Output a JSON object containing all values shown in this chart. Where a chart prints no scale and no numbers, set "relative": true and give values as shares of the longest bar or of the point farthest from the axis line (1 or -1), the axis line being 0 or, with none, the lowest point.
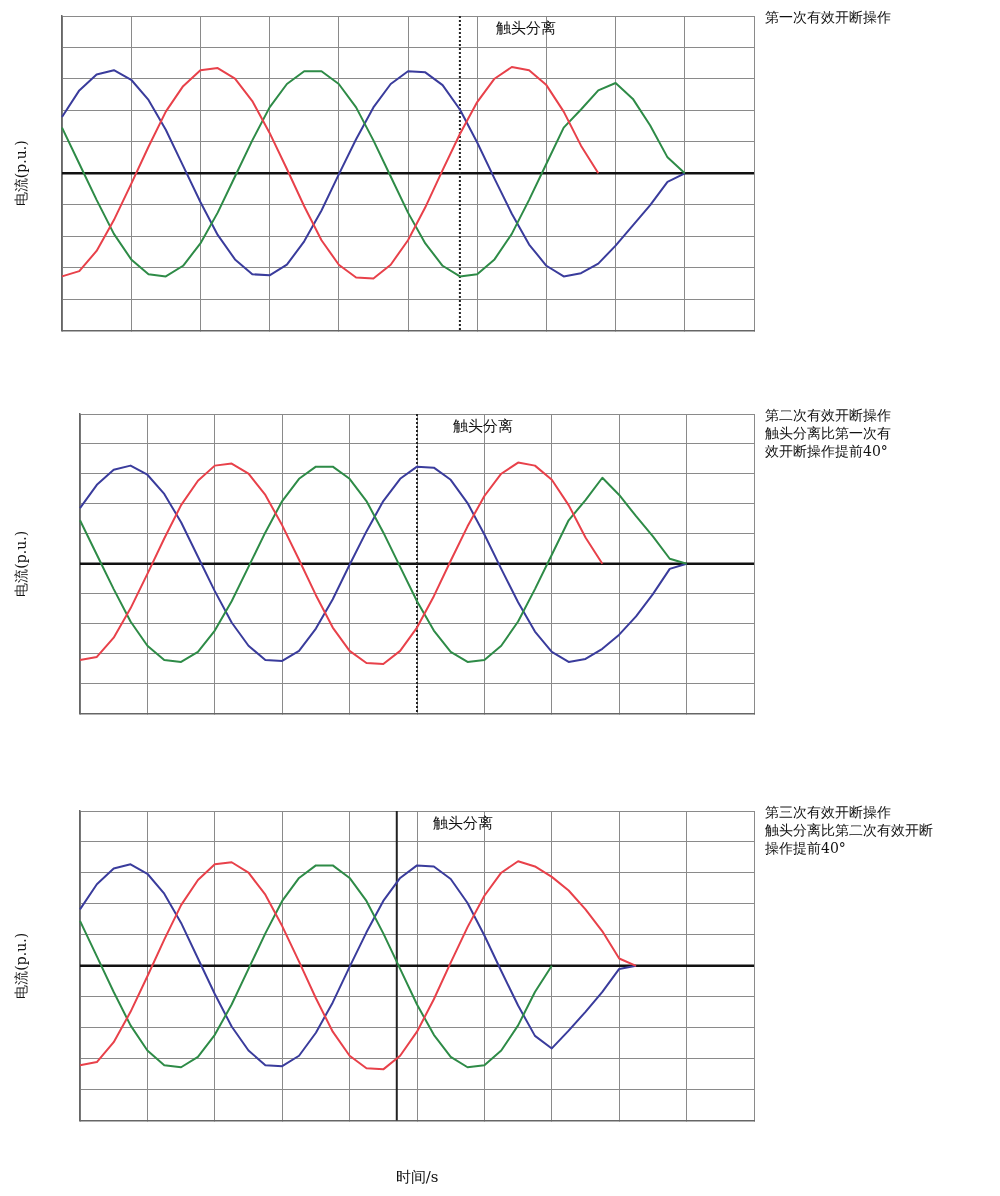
{
  "chart_data": [
    {
      "type": "line",
      "relative": true,
      "ylabel": "电流(p.u.)",
      "categories": [
        null,
        null,
        null,
        null,
        null,
        null,
        null,
        null,
        null,
        null,
        null,
        null,
        null,
        null,
        null,
        null,
        null,
        null,
        null,
        null,
        null,
        null,
        null,
        null,
        null,
        null,
        null,
        null,
        null,
        null,
        null,
        null,
        null,
        null,
        null,
        null,
        null,
        null,
        null,
        null,
        null
      ],
      "grid": true,
      "legend": false,
      "marker": "none",
      "line_style": "solid",
      "annotations": [
        "触头分离",
        "第一次有效开断操作"
      ],
      "series": [
        {
          "color": "#e8414a",
          "values": [
            -0.97,
            -0.92,
            -0.73,
            -0.44,
            -0.1,
            0.25,
            0.58,
            0.82,
            0.97,
            0.99,
            0.89,
            0.68,
            0.38,
            0.04,
            -0.31,
            -0.63,
            -0.86,
            -0.98,
            -0.99,
            -0.86,
            -0.63,
            -0.32,
            0.03,
            0.37,
            0.67,
            0.89,
            1,
            0.97,
            0.83,
            0.58,
            0.26,
            0,
            null,
            null,
            null,
            null,
            null,
            null,
            null,
            null,
            null
          ]
        },
        {
          "color": "#2e8b47",
          "values": [
            0.43,
            0.09,
            -0.25,
            -0.57,
            -0.81,
            -0.95,
            -0.97,
            -0.87,
            -0.66,
            -0.37,
            -0.03,
            0.31,
            0.62,
            0.84,
            0.96,
            0.96,
            0.84,
            0.62,
            0.31,
            -0.03,
            -0.37,
            -0.66,
            -0.87,
            -0.97,
            -0.95,
            -0.81,
            -0.57,
            -0.25,
            0.09,
            0.43,
            0.6,
            0.78,
            0.85,
            0.7,
            0.45,
            0.15,
            0,
            null,
            null,
            null,
            null
          ]
        },
        {
          "color": "#3a3c9c",
          "values": [
            0.53,
            0.78,
            0.93,
            0.97,
            0.88,
            0.69,
            0.41,
            0.07,
            -0.27,
            -0.58,
            -0.81,
            -0.95,
            -0.96,
            -0.86,
            -0.64,
            -0.35,
            -0.01,
            0.32,
            0.62,
            0.84,
            0.96,
            0.95,
            0.83,
            0.6,
            0.29,
            -0.05,
            -0.38,
            -0.67,
            -0.87,
            -0.97,
            -0.94,
            -0.85,
            -0.68,
            -0.49,
            -0.3,
            -0.08,
            0,
            null,
            null,
            null,
            null
          ]
        }
      ]
    },
    {
      "type": "line",
      "relative": true,
      "ylabel": "电流(p.u.)",
      "categories": [
        null,
        null,
        null,
        null,
        null,
        null,
        null,
        null,
        null,
        null,
        null,
        null,
        null,
        null,
        null,
        null,
        null,
        null,
        null,
        null,
        null,
        null,
        null,
        null,
        null,
        null,
        null,
        null,
        null,
        null,
        null,
        null,
        null,
        null,
        null,
        null,
        null,
        null,
        null,
        null,
        null
      ],
      "grid": true,
      "legend": false,
      "marker": "none",
      "line_style": "solid",
      "annotations": [
        "触头分离",
        "第二次有效开断操作",
        "触头分离比第一次有",
        "效开断操作提前40°"
      ],
      "series": [
        {
          "color": "#e8414a",
          "values": [
            -0.95,
            -0.92,
            -0.73,
            -0.44,
            -0.1,
            0.25,
            0.58,
            0.82,
            0.97,
            0.99,
            0.89,
            0.68,
            0.38,
            0.04,
            -0.31,
            -0.63,
            -0.86,
            -0.98,
            -0.99,
            -0.86,
            -0.63,
            -0.32,
            0.03,
            0.37,
            0.67,
            0.89,
            1,
            0.97,
            0.83,
            0.58,
            0.26,
            0,
            null,
            null,
            null,
            null,
            null,
            null,
            null,
            null,
            null
          ]
        },
        {
          "color": "#2e8b47",
          "values": [
            0.43,
            0.09,
            -0.25,
            -0.57,
            -0.81,
            -0.95,
            -0.97,
            -0.87,
            -0.66,
            -0.37,
            -0.03,
            0.31,
            0.62,
            0.84,
            0.96,
            0.96,
            0.84,
            0.62,
            0.31,
            -0.03,
            -0.37,
            -0.66,
            -0.87,
            -0.97,
            -0.95,
            -0.81,
            -0.57,
            -0.25,
            0.09,
            0.43,
            0.63,
            0.85,
            0.68,
            0.47,
            0.27,
            0.05,
            0,
            null,
            null,
            null,
            null
          ]
        },
        {
          "color": "#3a3c9c",
          "values": [
            0.55,
            0.78,
            0.93,
            0.97,
            0.88,
            0.69,
            0.41,
            0.07,
            -0.27,
            -0.58,
            -0.81,
            -0.95,
            -0.96,
            -0.86,
            -0.64,
            -0.35,
            -0.01,
            0.32,
            0.62,
            0.84,
            0.96,
            0.95,
            0.83,
            0.6,
            0.29,
            -0.05,
            -0.38,
            -0.67,
            -0.87,
            -0.97,
            -0.94,
            -0.84,
            -0.7,
            -0.52,
            -0.3,
            -0.05,
            0,
            null,
            null,
            null,
            null
          ]
        }
      ]
    },
    {
      "type": "line",
      "relative": true,
      "ylabel": "电流(p.u.)",
      "xlabel": "时间/s",
      "categories": [
        null,
        null,
        null,
        null,
        null,
        null,
        null,
        null,
        null,
        null,
        null,
        null,
        null,
        null,
        null,
        null,
        null,
        null,
        null,
        null,
        null,
        null,
        null,
        null,
        null,
        null,
        null,
        null,
        null,
        null,
        null,
        null,
        null,
        null,
        null,
        null,
        null,
        null,
        null,
        null,
        null
      ],
      "grid": true,
      "legend": false,
      "marker": "none",
      "line_style": "solid",
      "annotations": [
        "触头分离",
        "第三次有效开断操作",
        "触头分离比第二次有效开断",
        "操作提前40°"
      ],
      "series": [
        {
          "color": "#e8414a",
          "values": [
            -0.95,
            -0.92,
            -0.73,
            -0.44,
            -0.1,
            0.25,
            0.58,
            0.82,
            0.97,
            0.99,
            0.89,
            0.68,
            0.38,
            0.04,
            -0.31,
            -0.63,
            -0.86,
            -0.98,
            -0.99,
            -0.86,
            -0.63,
            -0.32,
            0.03,
            0.37,
            0.67,
            0.89,
            1,
            0.95,
            0.85,
            0.72,
            0.54,
            0.33,
            0.07,
            0,
            null,
            null,
            null,
            null,
            null,
            null,
            null
          ]
        },
        {
          "color": "#2e8b47",
          "values": [
            0.43,
            0.09,
            -0.25,
            -0.57,
            -0.81,
            -0.95,
            -0.97,
            -0.87,
            -0.66,
            -0.37,
            -0.03,
            0.31,
            0.62,
            0.84,
            0.96,
            0.96,
            0.84,
            0.62,
            0.31,
            -0.03,
            -0.37,
            -0.66,
            -0.87,
            -0.97,
            -0.95,
            -0.81,
            -0.57,
            -0.25,
            0,
            null,
            null,
            null,
            null,
            null,
            null,
            null,
            null,
            null,
            null,
            null,
            null
          ]
        },
        {
          "color": "#3a3c9c",
          "values": [
            0.54,
            0.78,
            0.93,
            0.97,
            0.88,
            0.69,
            0.41,
            0.07,
            -0.27,
            -0.58,
            -0.81,
            -0.95,
            -0.96,
            -0.86,
            -0.64,
            -0.35,
            -0.01,
            0.32,
            0.62,
            0.84,
            0.96,
            0.95,
            0.83,
            0.6,
            0.29,
            -0.05,
            -0.38,
            -0.67,
            -0.79,
            -0.62,
            -0.44,
            -0.25,
            -0.03,
            0,
            null,
            null,
            null,
            null,
            null,
            null,
            null
          ]
        }
      ]
    }
  ]
}
